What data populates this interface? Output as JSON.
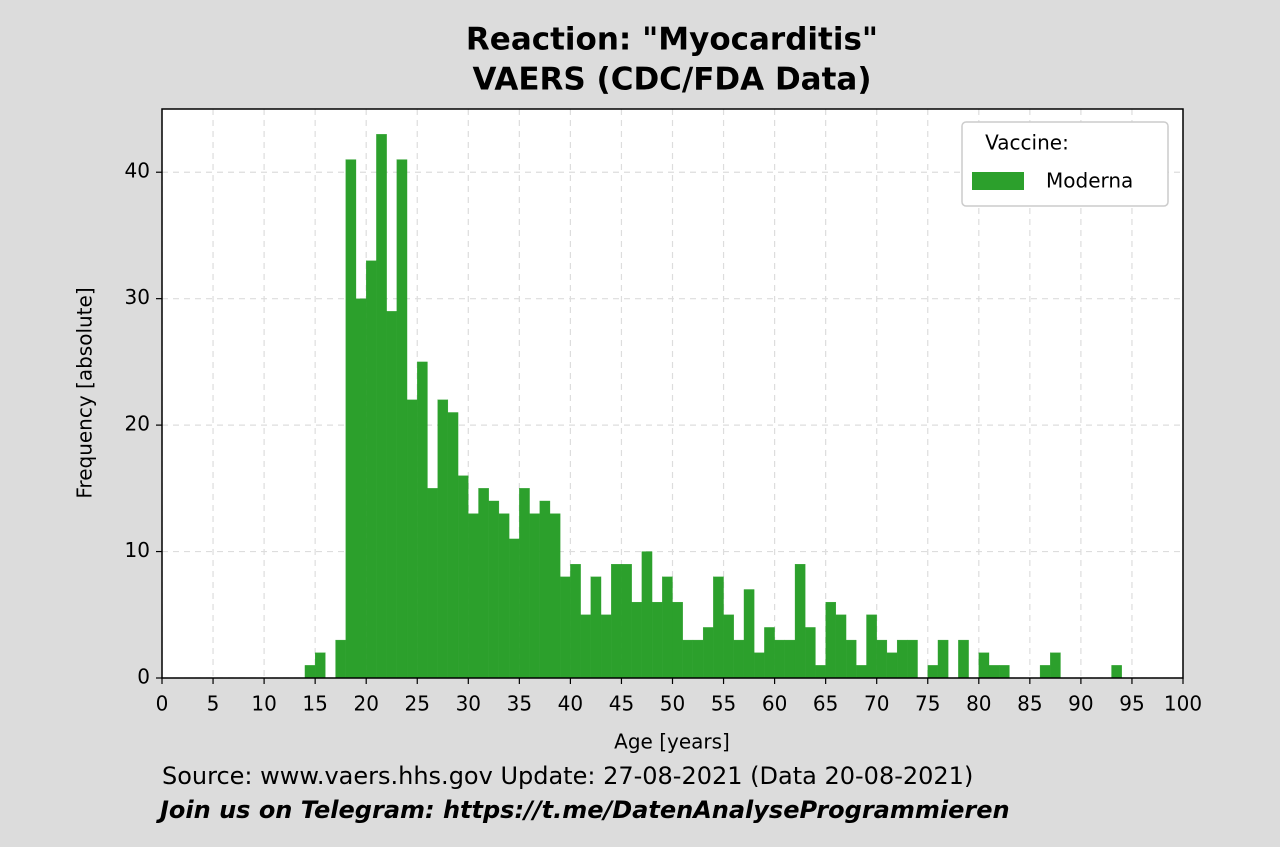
{
  "chart_data": {
    "type": "histogram",
    "title": "Reaction: \"Myocarditis\"",
    "subtitle": "VAERS (CDC/FDA Data)",
    "x_label": "Age [years]",
    "y_label": "Frequency [absolute]",
    "source": "Source: www.vaers.hhs.gov  Update: 27-08-2021 (Data 20-08-2021)",
    "footer": "Join us on Telegram: https://t.me/DatenAnalyseProgrammieren",
    "legend_title": "Vaccine:",
    "legend_position": "upper right",
    "grid": true,
    "bins": [
      14,
      15,
      16,
      17,
      18,
      19,
      20,
      21,
      22,
      23,
      24,
      25,
      26,
      27,
      28,
      29,
      30,
      31,
      32,
      33,
      34,
      35,
      36,
      37,
      38,
      39,
      40,
      41,
      42,
      43,
      44,
      45,
      46,
      47,
      48,
      49,
      50,
      51,
      52,
      53,
      54,
      55,
      56,
      57,
      58,
      59,
      60,
      61,
      62,
      63,
      64,
      65,
      66,
      67,
      68,
      69,
      70,
      71,
      72,
      73,
      74,
      75,
      76,
      77,
      78,
      79,
      80,
      81,
      82,
      83,
      84,
      85,
      86,
      87,
      88,
      89,
      90,
      91,
      92,
      93,
      94
    ],
    "series": [
      {
        "name": "Moderna",
        "color": "#2ca02c",
        "values": [
          1,
          2,
          0,
          3,
          41,
          30,
          33,
          43,
          29,
          41,
          22,
          25,
          15,
          22,
          21,
          16,
          13,
          15,
          14,
          13,
          11,
          15,
          13,
          14,
          13,
          8,
          9,
          5,
          8,
          5,
          9,
          9,
          6,
          10,
          6,
          8,
          6,
          3,
          3,
          4,
          8,
          5,
          3,
          7,
          2,
          4,
          3,
          3,
          9,
          4,
          1,
          6,
          5,
          3,
          1,
          5,
          3,
          2,
          3,
          3,
          0,
          1,
          3,
          0,
          3,
          0,
          2,
          1,
          1,
          0,
          0,
          0,
          1,
          2,
          0,
          0,
          0,
          0,
          0,
          1
        ]
      }
    ],
    "xlim": [
      0,
      100
    ],
    "xticks": [
      0,
      5,
      10,
      15,
      20,
      25,
      30,
      35,
      40,
      45,
      50,
      55,
      60,
      65,
      70,
      75,
      80,
      85,
      90,
      95,
      100
    ],
    "ylim": [
      0,
      45
    ],
    "yticks": [
      0,
      10,
      20,
      30,
      40
    ]
  }
}
